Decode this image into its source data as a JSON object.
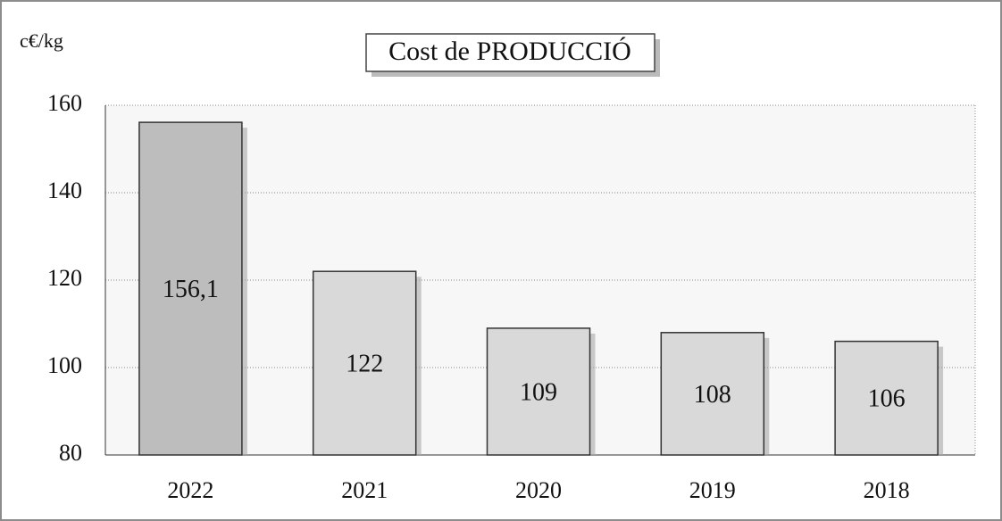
{
  "chart_data": {
    "type": "bar",
    "title": "Cost de PRODUCCIÓ",
    "y_axis_label": "c€/kg",
    "categories": [
      "2022",
      "2021",
      "2020",
      "2019",
      "2018"
    ],
    "values": [
      156.1,
      122,
      109,
      108,
      106
    ],
    "value_labels": [
      "156,1",
      "122",
      "109",
      "108",
      "106"
    ],
    "colors": [
      "#bdbdbd",
      "#d9d9d9",
      "#d9d9d9",
      "#d9d9d9",
      "#d9d9d9"
    ],
    "ylim": [
      80,
      160
    ],
    "yticks": [
      80,
      100,
      120,
      140,
      160
    ],
    "grid": true
  }
}
